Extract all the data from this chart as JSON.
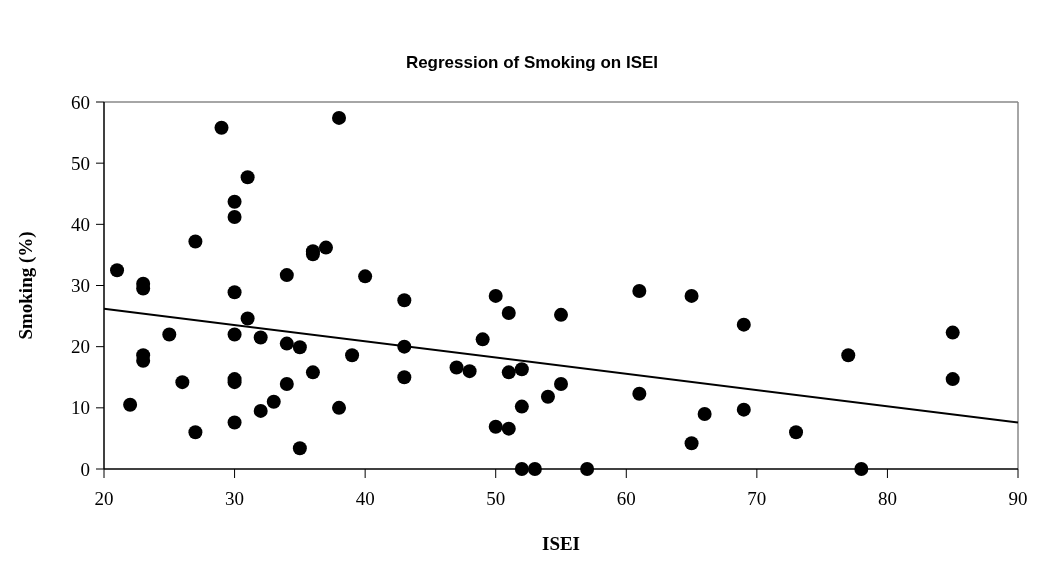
{
  "chart_data": {
    "type": "scatter",
    "title": "Regression of Smoking on ISEI",
    "xlabel": "ISEI",
    "ylabel": "Smoking (%)",
    "xlim": [
      20,
      90
    ],
    "xticks": [
      20,
      30,
      40,
      50,
      60,
      70,
      80,
      90
    ],
    "ylim": [
      0,
      60
    ],
    "yticks": [
      0,
      10,
      20,
      30,
      40,
      50,
      60
    ],
    "grid": false,
    "marker": "circle",
    "series": [
      {
        "color": "#000000",
        "x": [
          21,
          22,
          23,
          23,
          23,
          23,
          25,
          26,
          27,
          27,
          29,
          30,
          30,
          30,
          30,
          30,
          30,
          30,
          31,
          31,
          32,
          32,
          33,
          34,
          34,
          34,
          35,
          35,
          36,
          36,
          36,
          37,
          38,
          38,
          39,
          40,
          43,
          43,
          43,
          47,
          48,
          49,
          50,
          50,
          51,
          51,
          51,
          52,
          52,
          52,
          53,
          54,
          55,
          55,
          57,
          61,
          61,
          65,
          65,
          66,
          69,
          69,
          73,
          77,
          78,
          85,
          85
        ],
        "values": [
          32.5,
          10.5,
          30.3,
          29.5,
          18.6,
          17.7,
          22,
          14.2,
          37.2,
          6,
          55.8,
          43.7,
          41.2,
          28.9,
          22,
          14.7,
          14.2,
          7.6,
          47.7,
          24.6,
          21.5,
          9.5,
          11,
          31.7,
          20.5,
          13.9,
          19.9,
          3.4,
          35.6,
          35.1,
          15.8,
          36.2,
          57.4,
          10,
          18.6,
          31.5,
          27.6,
          20,
          15,
          16.6,
          16,
          21.2,
          28.3,
          6.9,
          25.5,
          15.8,
          6.6,
          16.3,
          10.2,
          0,
          0,
          11.8,
          25.2,
          13.9,
          0,
          29.1,
          12.3,
          28.3,
          4.2,
          9,
          23.6,
          9.7,
          6,
          18.6,
          0,
          22.3,
          14.7
        ]
      },
      {
        "type": "line",
        "color": "#000000",
        "line_style": "solid",
        "marker": "none",
        "x": [
          20,
          90
        ],
        "values": [
          26.2,
          7.6
        ]
      }
    ]
  }
}
